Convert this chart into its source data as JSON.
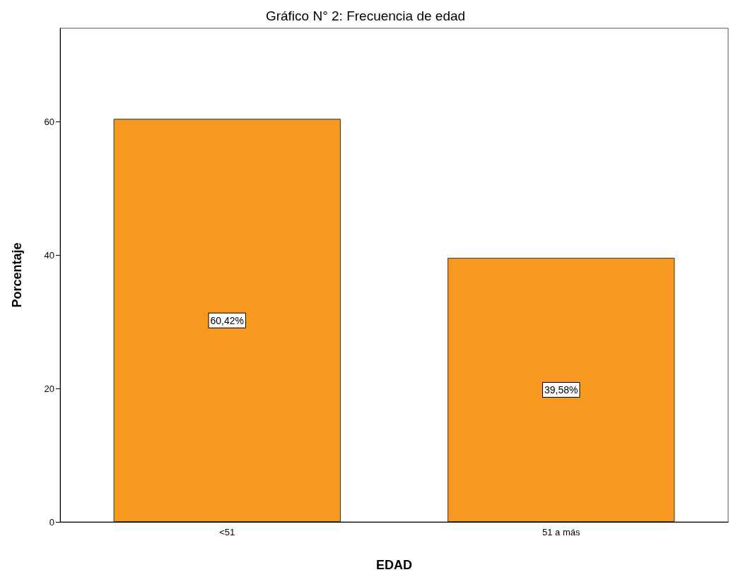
{
  "chart_data": {
    "type": "bar",
    "title": "Gráfico N° 2: Frecuencia de edad",
    "xlabel": "EDAD",
    "ylabel": "Porcentaje",
    "categories": [
      "<51",
      "51 a más"
    ],
    "values": [
      60.42,
      39.58
    ],
    "value_labels": [
      "60,42%",
      "39,58%"
    ],
    "color": "#f7991f",
    "ylim": [
      0,
      74
    ],
    "yticks": [
      0,
      20,
      40,
      60
    ],
    "grid": false
  }
}
